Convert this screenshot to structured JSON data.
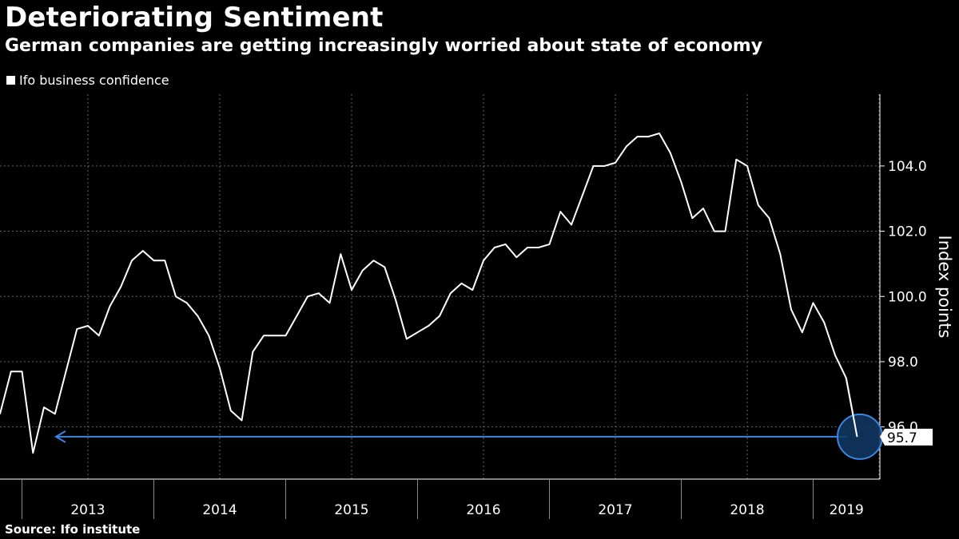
{
  "header": {
    "title": "Deteriorating Sentiment",
    "subtitle": "German companies are getting increasingly worried about state of economy"
  },
  "footer": {
    "source": "Source: Ifo institute"
  },
  "colors": {
    "background": "#000000",
    "line": "#ffffff",
    "annotation": "#3b86e0",
    "circle_fill": "#123a66",
    "grid": "#666666"
  },
  "chart_data": {
    "type": "line",
    "title": "Deteriorating Sentiment",
    "subtitle": "German companies are getting increasingly worried about state of economy",
    "ylabel": "Index points",
    "xlabel": "",
    "legend": "top-left",
    "grid": true,
    "ylim": [
      94.4,
      106.2
    ],
    "y_ticks": [
      96.0,
      98.0,
      100.0,
      102.0,
      104.0
    ],
    "y_tick_labels": [
      "96.0",
      "98.0",
      "100.0",
      "102.0",
      "104.0"
    ],
    "x_tick_labels": [
      "2013",
      "2014",
      "2015",
      "2016",
      "2017",
      "2018",
      "2019"
    ],
    "series": [
      {
        "name": "Ifo business confidence",
        "start": "2012-11",
        "values": [
          96.4,
          97.7,
          97.7,
          95.2,
          96.6,
          96.4,
          97.7,
          99.0,
          99.1,
          98.8,
          99.7,
          100.3,
          101.1,
          101.4,
          101.1,
          101.1,
          100.0,
          99.8,
          99.4,
          98.8,
          97.8,
          96.5,
          96.2,
          98.3,
          98.8,
          98.8,
          98.8,
          99.4,
          100.0,
          100.1,
          99.8,
          101.3,
          100.2,
          100.8,
          101.1,
          100.9,
          99.9,
          98.7,
          98.9,
          99.1,
          99.4,
          100.1,
          100.4,
          100.2,
          101.1,
          101.5,
          101.6,
          101.2,
          101.5,
          101.5,
          101.6,
          102.6,
          102.2,
          103.1,
          104.0,
          104.0,
          104.1,
          104.6,
          104.9,
          104.9,
          105.0,
          104.4,
          103.5,
          102.4,
          102.7,
          102.0,
          102.0,
          104.2,
          104.0,
          102.8,
          102.4,
          101.3,
          99.6,
          98.9,
          99.8,
          99.2,
          98.2,
          97.5,
          95.7
        ]
      }
    ],
    "annotation": {
      "label": "95.7",
      "value": 95.7
    }
  }
}
